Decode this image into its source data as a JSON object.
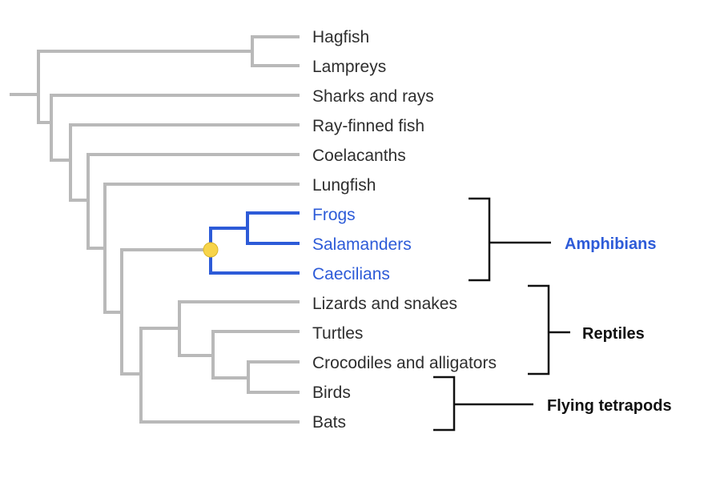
{
  "taxa": [
    {
      "label": "Hagfish",
      "color": "#2e2e2e"
    },
    {
      "label": "Lampreys",
      "color": "#2e2e2e"
    },
    {
      "label": "Sharks and rays",
      "color": "#2e2e2e"
    },
    {
      "label": "Ray-finned fish",
      "color": "#2e2e2e"
    },
    {
      "label": "Coelacanths",
      "color": "#2e2e2e"
    },
    {
      "label": "Lungfish",
      "color": "#2e2e2e"
    },
    {
      "label": "Frogs",
      "color": "#2d5bd8"
    },
    {
      "label": "Salamanders",
      "color": "#2d5bd8"
    },
    {
      "label": "Caecilians",
      "color": "#2d5bd8"
    },
    {
      "label": "Lizards and snakes",
      "color": "#2e2e2e"
    },
    {
      "label": "Turtles",
      "color": "#2e2e2e"
    },
    {
      "label": "Crocodiles and alligators",
      "color": "#2e2e2e"
    },
    {
      "label": "Birds",
      "color": "#2e2e2e"
    },
    {
      "label": "Bats",
      "color": "#2e2e2e"
    }
  ],
  "groups": {
    "amphibians": {
      "label": "Amphibians",
      "color": "#2d5bd8"
    },
    "reptiles": {
      "label": "Reptiles",
      "color": "#111111"
    },
    "flying_tetrapods": {
      "label": "Flying tetrapods",
      "color": "#111111"
    }
  },
  "colors": {
    "branch": "#b9b9b9",
    "highlight": "#2d5bd8",
    "node_marker": "#f7d44a"
  }
}
